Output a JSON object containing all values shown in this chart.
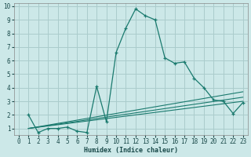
{
  "title": "",
  "xlabel": "Humidex (Indice chaleur)",
  "bg_color": "#cce8e8",
  "grid_color": "#aacccc",
  "line_color": "#1a7a6e",
  "xlim": [
    -0.5,
    23.5
  ],
  "ylim": [
    0.5,
    10.2
  ],
  "xticks": [
    0,
    1,
    2,
    3,
    4,
    5,
    6,
    7,
    8,
    9,
    10,
    11,
    12,
    13,
    14,
    15,
    16,
    17,
    18,
    19,
    20,
    21,
    22,
    23
  ],
  "yticks": [
    1,
    2,
    3,
    4,
    5,
    6,
    7,
    8,
    9,
    10
  ],
  "line1_x": [
    1,
    2,
    3,
    4,
    5,
    6,
    7,
    8,
    9,
    10,
    11,
    12,
    13,
    14,
    15,
    16,
    17,
    18,
    19,
    20,
    21,
    22,
    23
  ],
  "line1_y": [
    2.0,
    0.7,
    1.0,
    1.0,
    1.1,
    0.8,
    0.7,
    4.1,
    1.5,
    6.6,
    8.4,
    9.8,
    9.3,
    9.0,
    6.2,
    5.8,
    5.9,
    4.7,
    4.0,
    3.1,
    3.0,
    2.1,
    2.9
  ],
  "line2_x": [
    1,
    23
  ],
  "line2_y": [
    1.0,
    3.0
  ],
  "line3_x": [
    1,
    23
  ],
  "line3_y": [
    1.0,
    3.3
  ],
  "line4_x": [
    1,
    23
  ],
  "line4_y": [
    1.0,
    3.7
  ]
}
